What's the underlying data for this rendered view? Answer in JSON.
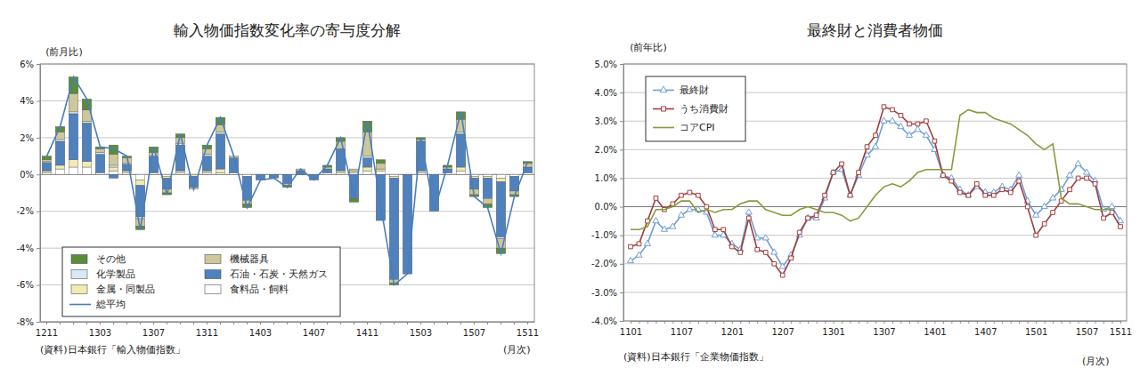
{
  "chart_data": [
    {
      "type": "bar",
      "title": "輸入物価指数変化率の寄与度分解",
      "y_axis_label": "(前月比)",
      "x_axis_label": "(月次)",
      "source": "(資料)日本銀行「輸入物価指数」",
      "stacked": true,
      "grid": true,
      "legend": "bottom-left",
      "ylim": [
        -8,
        6
      ],
      "yticks": [
        {
          "value": 6,
          "label": "6%"
        },
        {
          "value": 4,
          "label": "4%"
        },
        {
          "value": 2,
          "label": "2%"
        },
        {
          "value": 0,
          "label": "0%"
        },
        {
          "value": -2,
          "label": "-2%"
        },
        {
          "value": -4,
          "label": "-4%"
        },
        {
          "value": -6,
          "label": "-6%"
        },
        {
          "value": -8,
          "label": "-8%"
        }
      ],
      "categories": [
        "1211",
        null,
        null,
        null,
        "1303",
        null,
        null,
        null,
        "1307",
        null,
        null,
        null,
        "1311",
        null,
        null,
        null,
        "1403",
        null,
        null,
        null,
        "1407",
        null,
        null,
        null,
        "1411",
        null,
        null,
        null,
        "1503",
        null,
        null,
        null,
        "1507",
        null,
        null,
        null,
        "1511"
      ],
      "series": [
        {
          "name": "その他",
          "color": "#5b8c3a",
          "values": [
            0.2,
            0.3,
            0.9,
            0.6,
            0.1,
            0.5,
            0.1,
            -0.2,
            0.3,
            -0.1,
            0.2,
            0,
            0.2,
            0.4,
            0,
            -0.2,
            0,
            0,
            -0.1,
            0,
            0,
            0.1,
            0.2,
            -0.2,
            0.6,
            0.2,
            -0.1,
            0,
            0.1,
            0,
            0.1,
            0.4,
            -0.1,
            -0.2,
            -0.3,
            -0.1,
            0.1
          ]
        },
        {
          "name": "機械器具",
          "color": "#cdc79c",
          "values": [
            0.1,
            0.4,
            1.0,
            0.6,
            0.2,
            0.6,
            0.3,
            -0.4,
            0.2,
            -0.2,
            0.3,
            -0.1,
            0.3,
            0.4,
            0.1,
            -0.2,
            0,
            0,
            -0.1,
            0.1,
            0,
            0.1,
            0.4,
            0.1,
            1.3,
            0.3,
            -0.2,
            0,
            0.1,
            0,
            0.1,
            0.7,
            -0.3,
            -0.3,
            -0.5,
            -0.2,
            0.2
          ]
        },
        {
          "name": "化学製品",
          "color": "#dbe8f4",
          "values": [
            0.05,
            0.1,
            0.1,
            0.1,
            0.1,
            0.1,
            0.05,
            -0.1,
            0,
            0,
            0.1,
            0,
            0.1,
            0.1,
            0,
            0,
            0,
            0,
            0,
            0,
            0,
            0,
            0,
            0,
            0.1,
            0,
            0,
            0,
            0,
            0,
            0,
            0.1,
            0,
            0,
            -0.1,
            0,
            0
          ]
        },
        {
          "name": "石油・石炭・天然ガス",
          "color": "#4f81bd",
          "values": [
            0.45,
            1.3,
            2.5,
            2.1,
            1.0,
            -0.2,
            0.35,
            -1.7,
            0.9,
            -0.6,
            1.4,
            -0.6,
            0.8,
            1.9,
            0.8,
            -1.3,
            -0.3,
            -0.2,
            -0.5,
            0.2,
            -0.3,
            0.2,
            1.2,
            -1.3,
            0.5,
            -2.5,
            -5.5,
            -5.4,
            1.6,
            -2.0,
            0.2,
            1.8,
            -0.6,
            -1.1,
            -3.0,
            -0.8,
            0.3
          ]
        },
        {
          "name": "金属・同製品",
          "color": "#f2eab0",
          "values": [
            0.1,
            0.2,
            0.4,
            0.3,
            0.0,
            0.2,
            0.1,
            -0.3,
            0.0,
            -0.1,
            0.1,
            -0.1,
            0.1,
            0.2,
            0.0,
            0,
            0,
            0,
            0,
            0,
            0,
            0,
            0.1,
            0.1,
            0.2,
            0.1,
            -0.1,
            0,
            0.1,
            0,
            0,
            0.2,
            -0.1,
            -0.1,
            -0.2,
            0,
            0
          ]
        },
        {
          "name": "食料品・飼料",
          "color": "#ffffff",
          "values": [
            0.1,
            0.3,
            0.4,
            0.4,
            0.1,
            0.2,
            0.1,
            -0.3,
            0.1,
            -0.1,
            0.1,
            0,
            0.1,
            0.1,
            0.1,
            -0.1,
            0,
            0,
            0,
            0,
            0,
            0.1,
            0.1,
            0.1,
            0.2,
            0.2,
            -0.1,
            0,
            0.1,
            0,
            0.1,
            0.2,
            -0.1,
            -0.1,
            -0.2,
            -0.1,
            0.1
          ]
        },
        {
          "name": "総平均",
          "type": "line",
          "color": "#4a7ebb",
          "values": [
            1.0,
            2.6,
            5.3,
            4.1,
            1.5,
            1.4,
            1.0,
            -3.0,
            1.5,
            -1.1,
            2.2,
            -0.8,
            1.6,
            3.1,
            1.0,
            -1.8,
            -0.3,
            -0.2,
            -0.7,
            0.3,
            -0.3,
            0.5,
            2.0,
            -1.2,
            2.9,
            -1.7,
            -6.0,
            -5.4,
            2.0,
            -2.0,
            0.5,
            3.4,
            -1.2,
            -1.8,
            -4.3,
            -1.2,
            0.7
          ]
        }
      ]
    },
    {
      "type": "line",
      "title": "最終財と消費者物価",
      "y_axis_label": "(前年比)",
      "x_axis_label": "(月次)",
      "source": "(資料)日本銀行「企業物価指数」",
      "grid": true,
      "legend": "top-left",
      "ylim": [
        -4,
        5
      ],
      "yticks": [
        {
          "value": 5,
          "label": "5.0%"
        },
        {
          "value": 4,
          "label": "4.0%"
        },
        {
          "value": 3,
          "label": "3.0%"
        },
        {
          "value": 2,
          "label": "2.0%"
        },
        {
          "value": 1,
          "label": "1.0%"
        },
        {
          "value": 0,
          "label": "0.0%"
        },
        {
          "value": -1,
          "label": "-1.0%"
        },
        {
          "value": -2,
          "label": "-2.0%"
        },
        {
          "value": -3,
          "label": "-3.0%"
        },
        {
          "value": -4,
          "label": "-4.0%"
        }
      ],
      "categories": [
        "1101",
        null,
        null,
        null,
        null,
        null,
        "1107",
        null,
        null,
        null,
        null,
        null,
        "1201",
        null,
        null,
        null,
        null,
        null,
        "1207",
        null,
        null,
        null,
        null,
        null,
        "1301",
        null,
        null,
        null,
        null,
        null,
        "1307",
        null,
        null,
        null,
        null,
        null,
        "1401",
        null,
        null,
        null,
        null,
        null,
        "1407",
        null,
        null,
        null,
        null,
        null,
        "1501",
        null,
        null,
        null,
        null,
        null,
        "1507",
        null,
        null,
        null,
        "1511"
      ],
      "series": [
        {
          "name": "最終財",
          "color": "#6f9fd8",
          "marker": "triangle",
          "values": [
            -1.9,
            -1.7,
            -1.3,
            -0.5,
            -0.8,
            -0.7,
            -0.3,
            -0.1,
            -0.1,
            -0.2,
            -1.0,
            -1.0,
            -1.3,
            -1.5,
            -0.2,
            -1.1,
            -1.1,
            -1.6,
            -2.1,
            -1.7,
            -1.0,
            -0.4,
            -0.4,
            0.3,
            1.2,
            1.3,
            0.4,
            1.1,
            1.8,
            2.1,
            3.0,
            3.0,
            2.8,
            2.5,
            2.7,
            2.5,
            2.0,
            1.1,
            1.0,
            0.6,
            0.4,
            0.7,
            0.5,
            0.5,
            0.7,
            0.6,
            1.1,
            0.2,
            -0.3,
            0.0,
            0.3,
            0.6,
            1.1,
            1.5,
            1.2,
            0.9,
            -0.1,
            0.0,
            -0.5
          ]
        },
        {
          "name": "うち消費財",
          "color": "#a0403c",
          "marker": "square",
          "values": [
            -1.4,
            -1.3,
            -0.5,
            0.3,
            -0.1,
            0.1,
            0.4,
            0.5,
            0.4,
            0.0,
            -0.8,
            -0.8,
            -1.4,
            -1.6,
            -0.4,
            -1.5,
            -1.6,
            -2.0,
            -2.4,
            -1.8,
            -0.9,
            -0.4,
            -0.3,
            0.4,
            1.2,
            1.5,
            0.4,
            1.2,
            2.1,
            2.5,
            3.5,
            3.4,
            3.2,
            2.9,
            2.9,
            3.0,
            2.3,
            1.1,
            0.9,
            0.5,
            0.4,
            0.8,
            0.4,
            0.4,
            0.6,
            0.5,
            0.9,
            0.0,
            -1.0,
            -0.6,
            -0.2,
            0.2,
            0.6,
            1.0,
            1.0,
            0.8,
            -0.4,
            -0.2,
            -0.7
          ]
        },
        {
          "name": "コアCPI",
          "color": "#869c3a",
          "values": [
            -0.8,
            -0.8,
            -0.7,
            -0.1,
            -0.1,
            0.0,
            0.2,
            0.2,
            -0.2,
            -0.1,
            -0.2,
            -0.1,
            -0.1,
            0.1,
            0.2,
            0.2,
            -0.1,
            -0.2,
            -0.3,
            -0.3,
            -0.1,
            0.0,
            -0.1,
            -0.2,
            -0.2,
            -0.3,
            -0.5,
            -0.4,
            0.0,
            0.4,
            0.7,
            0.8,
            0.7,
            0.9,
            1.2,
            1.3,
            1.3,
            1.3,
            1.3,
            3.2,
            3.4,
            3.3,
            3.3,
            3.1,
            3.0,
            2.9,
            2.7,
            2.5,
            2.2,
            2.0,
            2.2,
            0.3,
            0.1,
            0.1,
            0.0,
            -0.1,
            -0.1,
            -0.1,
            null
          ]
        }
      ]
    }
  ]
}
